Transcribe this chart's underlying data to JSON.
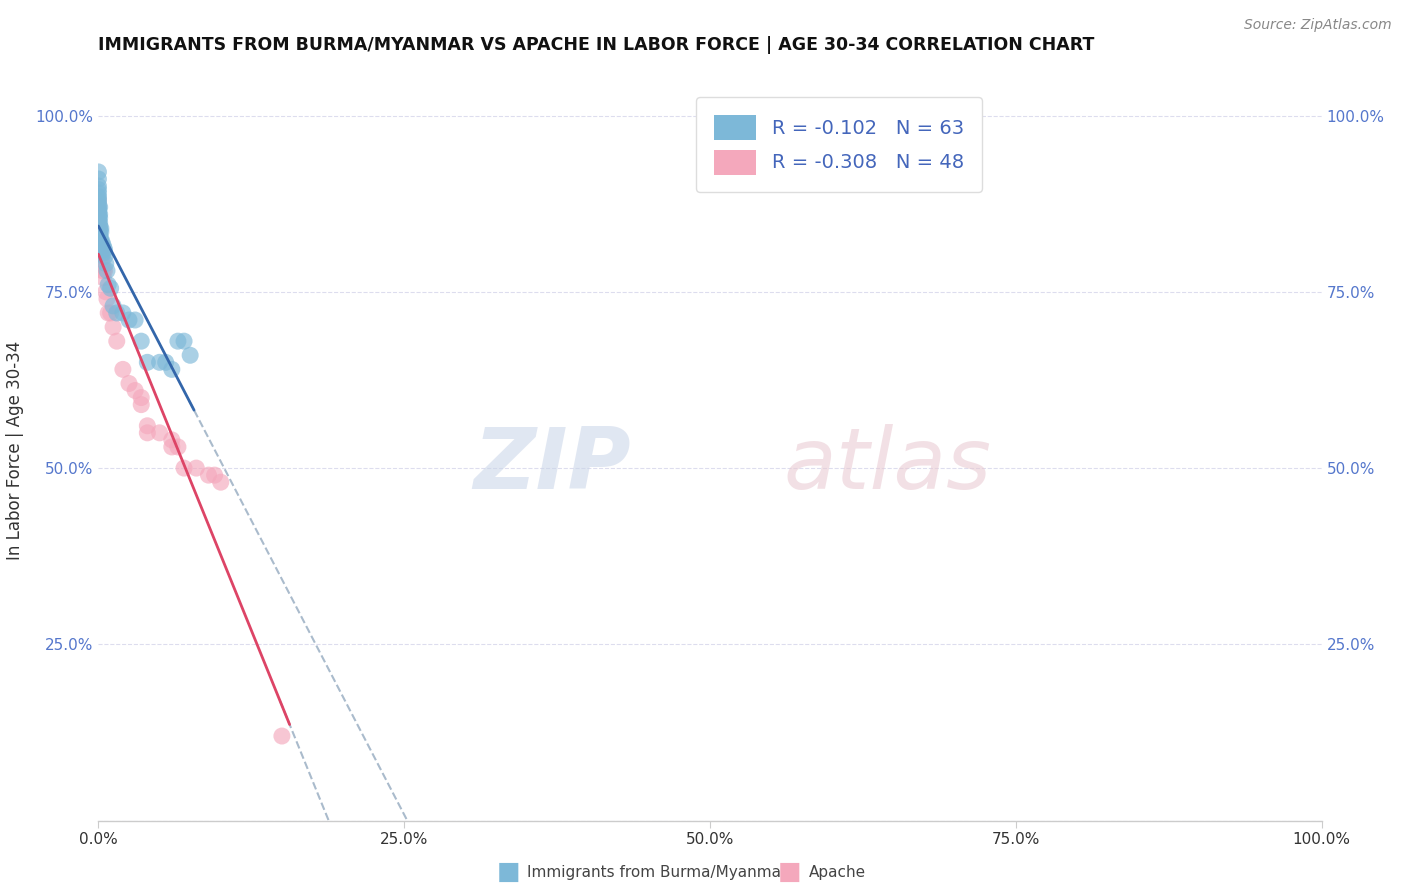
{
  "title": "IMMIGRANTS FROM BURMA/MYANMAR VS APACHE IN LABOR FORCE | AGE 30-34 CORRELATION CHART",
  "source": "Source: ZipAtlas.com",
  "ylabel": "In Labor Force | Age 30-34",
  "xlabel_blue": "Immigrants from Burma/Myanmar",
  "xlabel_pink": "Apache",
  "blue_R": -0.102,
  "blue_N": 63,
  "pink_R": -0.308,
  "pink_N": 48,
  "blue_color": "#7db8d8",
  "pink_color": "#f4a8bc",
  "blue_line_color": "#3366aa",
  "pink_line_color": "#dd4466",
  "dashed_line_color": "#aabbcc",
  "blue_x": [
    0.0,
    0.0,
    0.0,
    0.0,
    0.0,
    0.0,
    0.0,
    0.0,
    0.0,
    0.0,
    0.0,
    0.0,
    0.0,
    0.0,
    0.0,
    0.0,
    0.0,
    0.0,
    0.0,
    0.0,
    0.0,
    0.0,
    0.0,
    0.0,
    0.001,
    0.001,
    0.001,
    0.001,
    0.001,
    0.001,
    0.001,
    0.001,
    0.001,
    0.001,
    0.002,
    0.002,
    0.002,
    0.002,
    0.002,
    0.003,
    0.003,
    0.003,
    0.004,
    0.004,
    0.005,
    0.005,
    0.006,
    0.007,
    0.008,
    0.01,
    0.012,
    0.015,
    0.02,
    0.025,
    0.03,
    0.035,
    0.04,
    0.05,
    0.055,
    0.06,
    0.065,
    0.07,
    0.075
  ],
  "blue_y": [
    0.92,
    0.91,
    0.9,
    0.895,
    0.89,
    0.885,
    0.882,
    0.878,
    0.875,
    0.87,
    0.868,
    0.865,
    0.862,
    0.86,
    0.857,
    0.855,
    0.852,
    0.85,
    0.847,
    0.845,
    0.843,
    0.841,
    0.84,
    0.838,
    0.87,
    0.86,
    0.855,
    0.848,
    0.843,
    0.84,
    0.835,
    0.83,
    0.825,
    0.82,
    0.84,
    0.835,
    0.825,
    0.818,
    0.812,
    0.82,
    0.815,
    0.808,
    0.815,
    0.805,
    0.81,
    0.8,
    0.79,
    0.78,
    0.76,
    0.755,
    0.73,
    0.72,
    0.72,
    0.71,
    0.71,
    0.68,
    0.65,
    0.65,
    0.65,
    0.64,
    0.68,
    0.68,
    0.66
  ],
  "pink_x": [
    0.0,
    0.0,
    0.0,
    0.0,
    0.0,
    0.0,
    0.0,
    0.0,
    0.0,
    0.0,
    0.0,
    0.0,
    0.001,
    0.001,
    0.001,
    0.001,
    0.002,
    0.002,
    0.002,
    0.003,
    0.003,
    0.003,
    0.004,
    0.004,
    0.005,
    0.006,
    0.007,
    0.008,
    0.01,
    0.012,
    0.015,
    0.02,
    0.025,
    0.03,
    0.035,
    0.035,
    0.04,
    0.04,
    0.05,
    0.06,
    0.06,
    0.065,
    0.07,
    0.08,
    0.09,
    0.095,
    0.1,
    0.15
  ],
  "pink_y": [
    0.88,
    0.872,
    0.865,
    0.858,
    0.85,
    0.845,
    0.84,
    0.835,
    0.828,
    0.82,
    0.815,
    0.81,
    0.83,
    0.82,
    0.81,
    0.8,
    0.82,
    0.81,
    0.8,
    0.8,
    0.79,
    0.78,
    0.78,
    0.77,
    0.78,
    0.75,
    0.74,
    0.72,
    0.72,
    0.7,
    0.68,
    0.64,
    0.62,
    0.61,
    0.6,
    0.59,
    0.56,
    0.55,
    0.55,
    0.54,
    0.53,
    0.53,
    0.5,
    0.5,
    0.49,
    0.49,
    0.48,
    0.12
  ],
  "xlim": [
    0.0,
    1.0
  ],
  "ylim": [
    0.0,
    1.05
  ],
  "xtick_vals": [
    0.0,
    0.25,
    0.5,
    0.75,
    1.0
  ],
  "xtick_labels": [
    "0.0%",
    "25.0%",
    "50.0%",
    "75.0%",
    "100.0%"
  ],
  "ytick_vals": [
    0.0,
    0.25,
    0.5,
    0.75,
    1.0
  ],
  "ytick_labels": [
    "",
    "25.0%",
    "50.0%",
    "75.0%",
    "100.0%"
  ],
  "background_color": "#ffffff",
  "grid_color": "#ddddee"
}
